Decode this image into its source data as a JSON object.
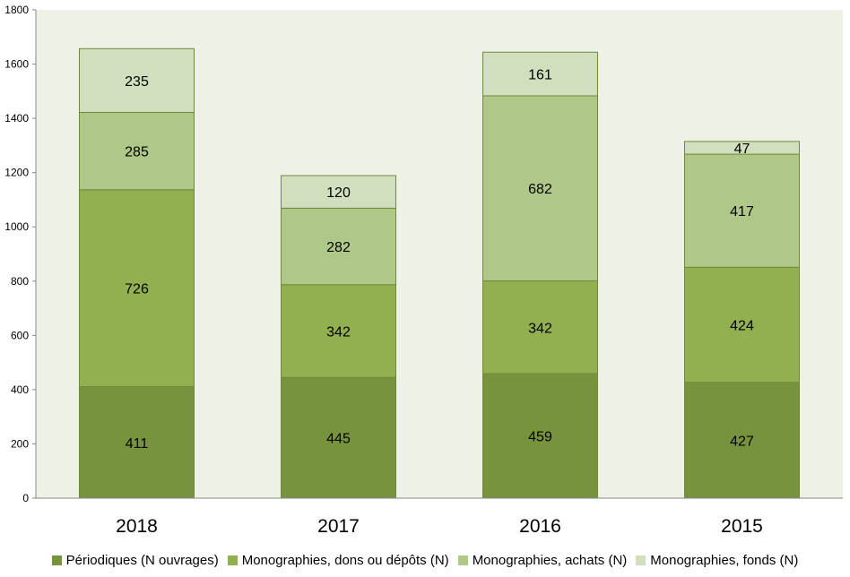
{
  "chart_data": {
    "type": "bar",
    "stacked": true,
    "categories": [
      "2018",
      "2017",
      "2016",
      "2015"
    ],
    "series": [
      {
        "name": "Périodiques (N ouvrages)",
        "color": "#77933c",
        "values": [
          411,
          445,
          459,
          427
        ]
      },
      {
        "name": "Monographies, dons ou dépôts (N)",
        "color": "#92b050",
        "values": [
          726,
          342,
          342,
          424
        ]
      },
      {
        "name": "Monographies, achats (N)",
        "color": "#afc887",
        "values": [
          285,
          282,
          682,
          417
        ]
      },
      {
        "name": "Monographies, fonds (N)",
        "color": "#d2dfbf",
        "values": [
          235,
          120,
          161,
          47
        ]
      }
    ],
    "ylim": [
      0,
      1800
    ],
    "yticks": [
      "0",
      "200",
      "400",
      "600",
      "800",
      "1000",
      "1200",
      "1400",
      "1600",
      "1800"
    ],
    "grid": false,
    "plot_background": "#eef2e6",
    "legend_position": "bottom"
  }
}
